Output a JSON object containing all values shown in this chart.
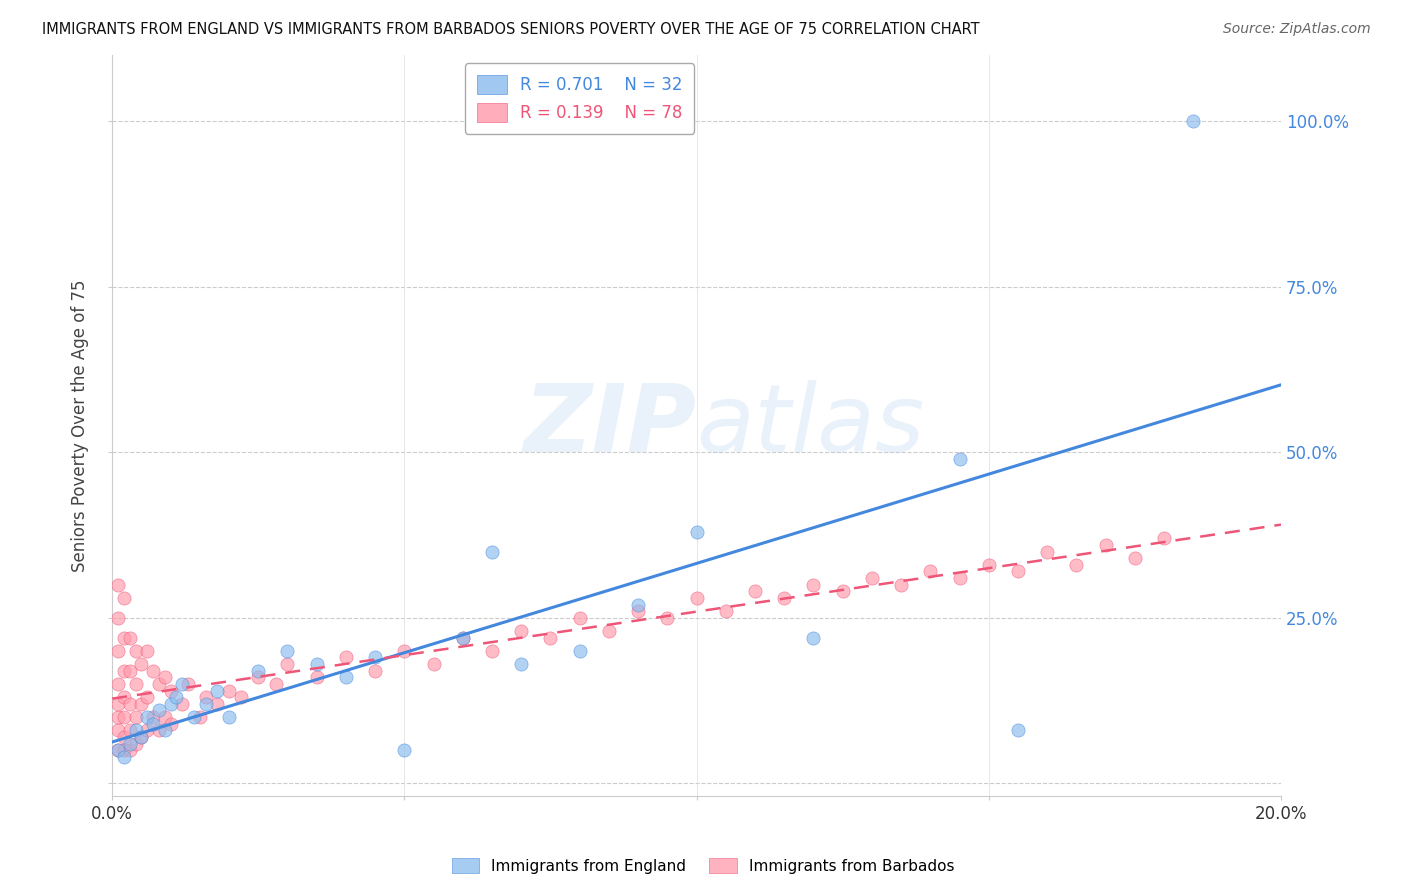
{
  "title": "IMMIGRANTS FROM ENGLAND VS IMMIGRANTS FROM BARBADOS SENIORS POVERTY OVER THE AGE OF 75 CORRELATION CHART",
  "source": "Source: ZipAtlas.com",
  "ylabel": "Seniors Poverty Over the Age of 75",
  "xlim": [
    0.0,
    0.2
  ],
  "ylim": [
    -0.02,
    1.1
  ],
  "england_color": "#88BBEE",
  "barbados_color": "#FF99AA",
  "england_line_color": "#4488DD",
  "barbados_line_color": "#EE5577",
  "legend_england_R": "R = 0.701",
  "legend_england_N": "N = 32",
  "legend_barbados_R": "R = 0.139",
  "legend_barbados_N": "N = 78",
  "watermark_zip": "ZIP",
  "watermark_atlas": "atlas",
  "background_color": "#FFFFFF",
  "grid_color": "#CCCCCC",
  "england_x": [
    0.001,
    0.002,
    0.003,
    0.004,
    0.005,
    0.006,
    0.007,
    0.008,
    0.009,
    0.01,
    0.011,
    0.012,
    0.014,
    0.016,
    0.018,
    0.02,
    0.025,
    0.03,
    0.035,
    0.04,
    0.045,
    0.05,
    0.06,
    0.065,
    0.07,
    0.08,
    0.09,
    0.1,
    0.12,
    0.145,
    0.155,
    0.185
  ],
  "england_y": [
    0.05,
    0.04,
    0.06,
    0.08,
    0.07,
    0.1,
    0.09,
    0.11,
    0.08,
    0.12,
    0.13,
    0.15,
    0.1,
    0.12,
    0.14,
    0.1,
    0.17,
    0.2,
    0.18,
    0.16,
    0.19,
    0.05,
    0.22,
    0.35,
    0.18,
    0.2,
    0.27,
    0.38,
    0.22,
    0.49,
    0.08,
    1.0
  ],
  "barbados_x": [
    0.001,
    0.001,
    0.001,
    0.001,
    0.001,
    0.001,
    0.001,
    0.001,
    0.002,
    0.002,
    0.002,
    0.002,
    0.002,
    0.002,
    0.002,
    0.003,
    0.003,
    0.003,
    0.003,
    0.003,
    0.004,
    0.004,
    0.004,
    0.004,
    0.005,
    0.005,
    0.005,
    0.006,
    0.006,
    0.006,
    0.007,
    0.007,
    0.008,
    0.008,
    0.009,
    0.009,
    0.01,
    0.01,
    0.012,
    0.013,
    0.015,
    0.016,
    0.018,
    0.02,
    0.022,
    0.025,
    0.028,
    0.03,
    0.035,
    0.04,
    0.045,
    0.05,
    0.055,
    0.06,
    0.065,
    0.07,
    0.075,
    0.08,
    0.085,
    0.09,
    0.095,
    0.1,
    0.105,
    0.11,
    0.115,
    0.12,
    0.125,
    0.13,
    0.135,
    0.14,
    0.145,
    0.15,
    0.155,
    0.16,
    0.165,
    0.17,
    0.175,
    0.18
  ],
  "barbados_y": [
    0.05,
    0.08,
    0.1,
    0.12,
    0.15,
    0.2,
    0.25,
    0.3,
    0.05,
    0.07,
    0.1,
    0.13,
    0.17,
    0.22,
    0.28,
    0.05,
    0.08,
    0.12,
    0.17,
    0.22,
    0.06,
    0.1,
    0.15,
    0.2,
    0.07,
    0.12,
    0.18,
    0.08,
    0.13,
    0.2,
    0.1,
    0.17,
    0.08,
    0.15,
    0.1,
    0.16,
    0.09,
    0.14,
    0.12,
    0.15,
    0.1,
    0.13,
    0.12,
    0.14,
    0.13,
    0.16,
    0.15,
    0.18,
    0.16,
    0.19,
    0.17,
    0.2,
    0.18,
    0.22,
    0.2,
    0.23,
    0.22,
    0.25,
    0.23,
    0.26,
    0.25,
    0.28,
    0.26,
    0.29,
    0.28,
    0.3,
    0.29,
    0.31,
    0.3,
    0.32,
    0.31,
    0.33,
    0.32,
    0.35,
    0.33,
    0.36,
    0.34,
    0.37
  ]
}
